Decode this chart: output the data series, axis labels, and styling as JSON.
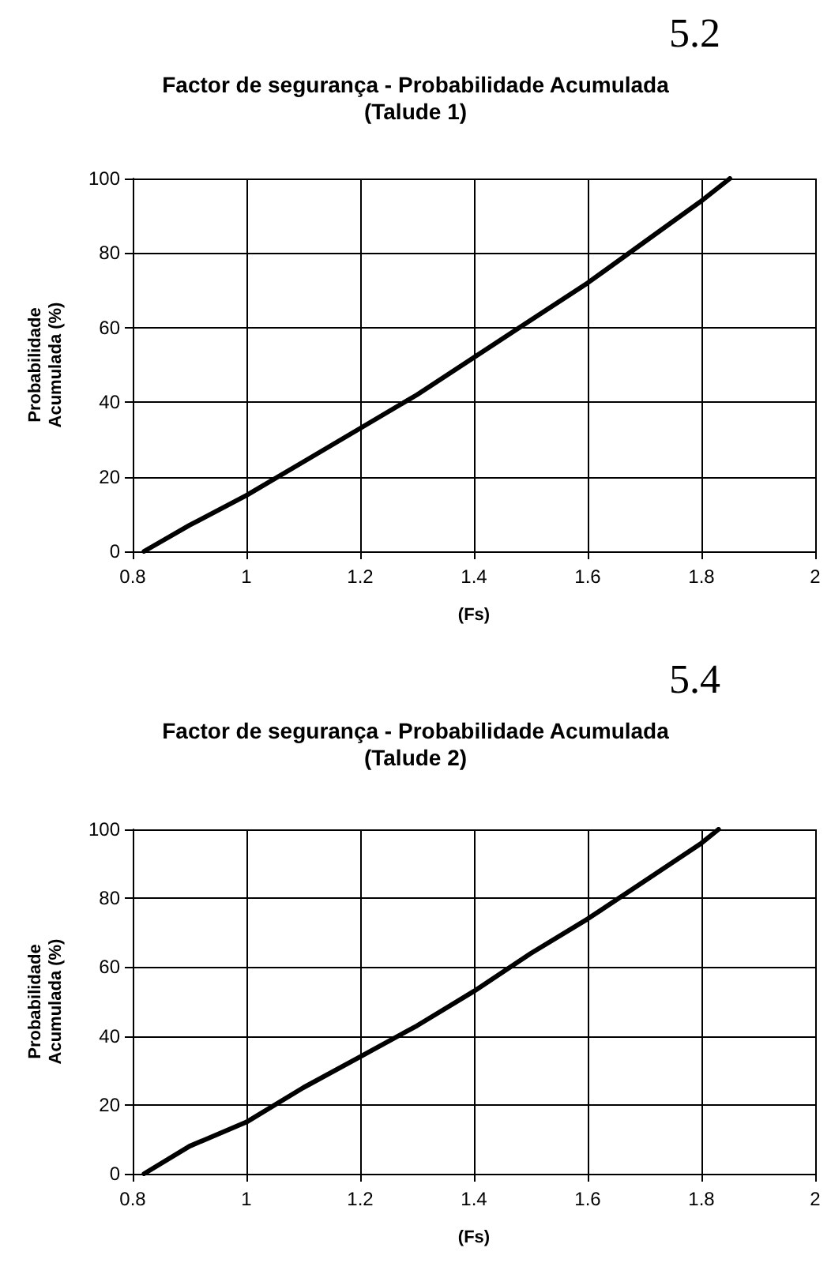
{
  "chart_data": [
    {
      "type": "line",
      "title": "Factor de segurança - Probabilidade Acumulada\n(Talude 1)",
      "annotations": [
        "5.2"
      ],
      "xlabel": "(Fs)",
      "ylabel": "Probabilidade\nAcumulada (%)",
      "xlim": [
        0.8,
        2
      ],
      "xticks": [
        0.8,
        1,
        1.2,
        1.4,
        1.6,
        1.8,
        2
      ],
      "ylim": [
        0,
        100
      ],
      "yticks": [
        0,
        20,
        40,
        60,
        80,
        100
      ],
      "grid": true,
      "marker": "none",
      "line_style": "solid",
      "series": [
        {
          "color": "#000000",
          "x": [
            0.82,
            0.9,
            1.0,
            1.1,
            1.2,
            1.3,
            1.4,
            1.5,
            1.6,
            1.7,
            1.8,
            1.85
          ],
          "values": [
            0,
            7,
            15,
            24,
            33,
            42,
            52,
            62,
            72,
            83,
            94,
            100
          ]
        }
      ]
    },
    {
      "type": "line",
      "title": "Factor de segurança - Probabilidade Acumulada\n(Talude 2)",
      "annotations": [
        "5.4"
      ],
      "xlabel": "(Fs)",
      "ylabel": "Probabilidade\nAcumulada (%)",
      "xlim": [
        0.8,
        2
      ],
      "xticks": [
        0.8,
        1,
        1.2,
        1.4,
        1.6,
        1.8,
        2
      ],
      "ylim": [
        0,
        100
      ],
      "yticks": [
        0,
        20,
        40,
        60,
        80,
        100
      ],
      "grid": true,
      "marker": "none",
      "line_style": "solid",
      "series": [
        {
          "color": "#000000",
          "x": [
            0.82,
            0.9,
            1.0,
            1.1,
            1.2,
            1.3,
            1.4,
            1.5,
            1.6,
            1.7,
            1.8,
            1.83
          ],
          "values": [
            0,
            8,
            15,
            25,
            34,
            43,
            53,
            64,
            74,
            85,
            96,
            100
          ]
        }
      ]
    }
  ]
}
